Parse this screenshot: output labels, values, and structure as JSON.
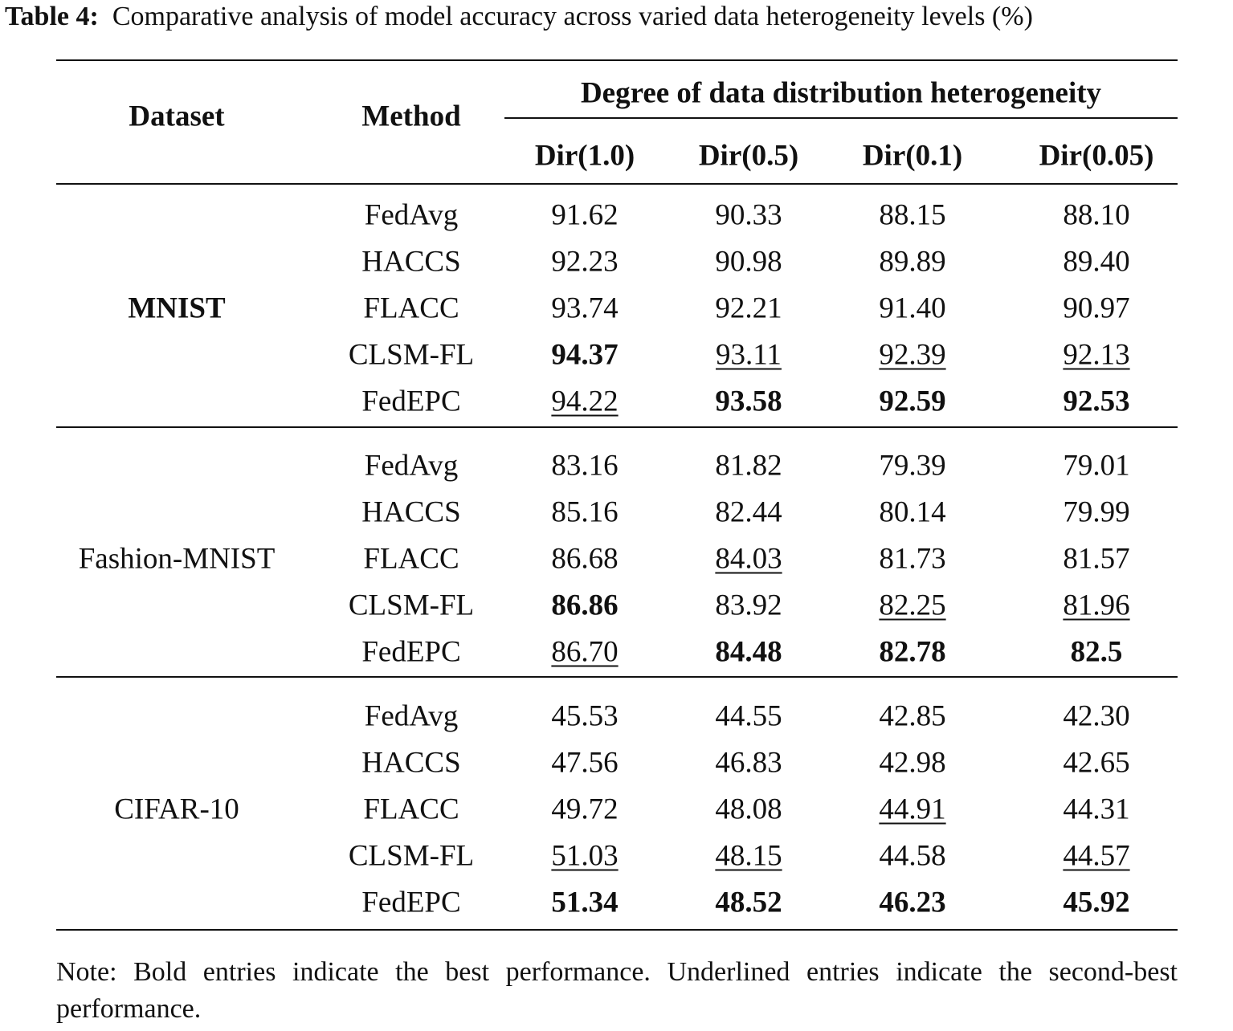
{
  "caption": {
    "label": "Table 4:",
    "text": "Comparative analysis of model accuracy across varied data heterogeneity levels (%)"
  },
  "table": {
    "header": {
      "dataset": "Dataset",
      "method": "Method",
      "group": "Degree of data distribution heterogeneity",
      "columns": [
        "Dir(1.0)",
        "Dir(0.5)",
        "Dir(0.1)",
        "Dir(0.05)"
      ]
    },
    "groups": [
      {
        "dataset": "MNIST",
        "rows": [
          {
            "method": "FedAvg",
            "values": [
              "91.62",
              "90.33",
              "88.15",
              "88.10"
            ]
          },
          {
            "method": "HACCS",
            "values": [
              "92.23",
              "90.98",
              "89.89",
              "89.40"
            ]
          },
          {
            "method": "FLACC",
            "values": [
              "93.74",
              "92.21",
              "91.40",
              "90.97"
            ]
          },
          {
            "method": "CLSM-FL",
            "values": [
              "94.37",
              "93.11",
              "92.39",
              "92.13"
            ]
          },
          {
            "method": "FedEPC",
            "values": [
              "94.22",
              "93.58",
              "92.59",
              "92.53"
            ]
          }
        ]
      },
      {
        "dataset": "Fashion-MNIST",
        "rows": [
          {
            "method": "FedAvg",
            "values": [
              "83.16",
              "81.82",
              "79.39",
              "79.01"
            ]
          },
          {
            "method": "HACCS",
            "values": [
              "85.16",
              "82.44",
              "80.14",
              "79.99"
            ]
          },
          {
            "method": "FLACC",
            "values": [
              "86.68",
              "84.03",
              "81.73",
              "81.57"
            ]
          },
          {
            "method": "CLSM-FL",
            "values": [
              "86.86",
              "83.92",
              "82.25",
              "81.96"
            ]
          },
          {
            "method": "FedEPC",
            "values": [
              "86.70",
              "84.48",
              "82.78",
              "82.5"
            ]
          }
        ]
      },
      {
        "dataset": "CIFAR-10",
        "rows": [
          {
            "method": "FedAvg",
            "values": [
              "45.53",
              "44.55",
              "42.85",
              "42.30"
            ]
          },
          {
            "method": "HACCS",
            "values": [
              "47.56",
              "46.83",
              "42.98",
              "42.65"
            ]
          },
          {
            "method": "FLACC",
            "values": [
              "49.72",
              "48.08",
              "44.91",
              "44.31"
            ]
          },
          {
            "method": "CLSM-FL",
            "values": [
              "51.03",
              "48.15",
              "44.58",
              "44.57"
            ]
          },
          {
            "method": "FedEPC",
            "values": [
              "51.34",
              "48.52",
              "46.23",
              "45.92"
            ]
          }
        ]
      }
    ]
  },
  "note": "Note: Bold entries indicate the best performance. Underlined entries indicate the second-best performance."
}
